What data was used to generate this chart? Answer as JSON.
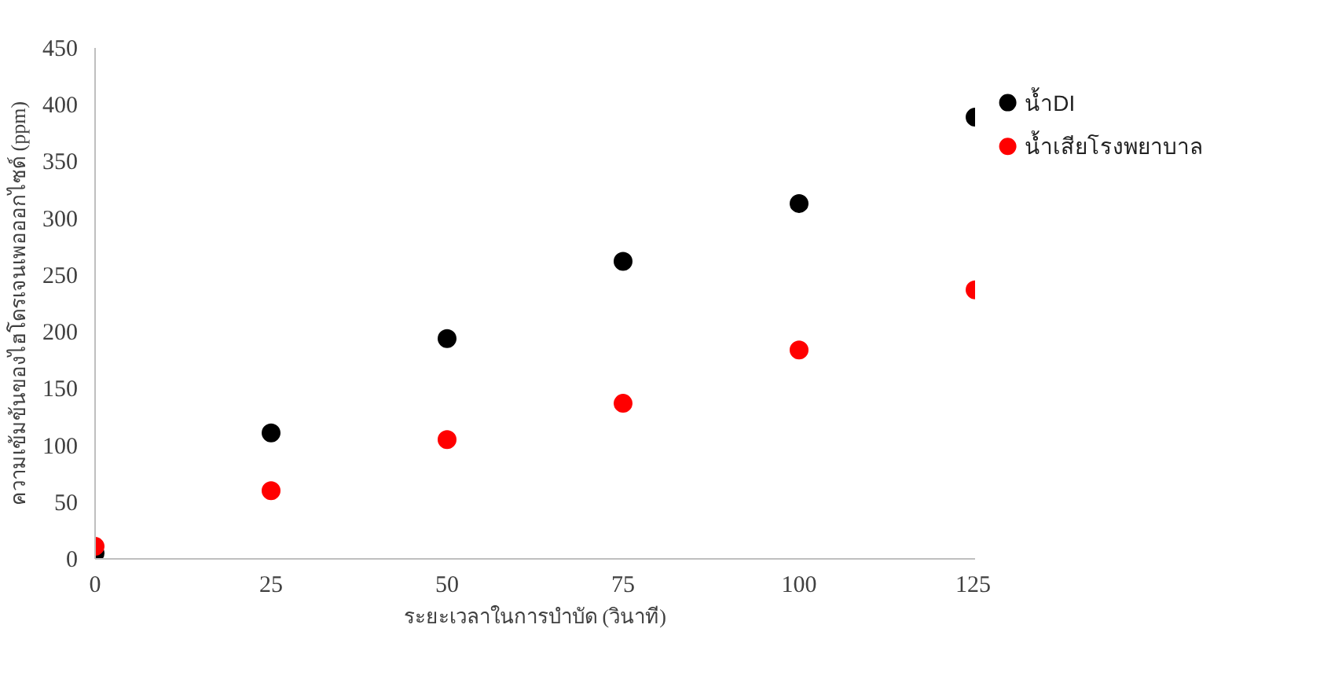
{
  "chart_data": {
    "type": "scatter",
    "xlabel": "ระยะเวลาในการบำบัด (วินาที)",
    "ylabel": "ความเข้มข้นของไฮโดรเจนเพอออกไซด์ (ppm)",
    "x": [
      0,
      25,
      50,
      75,
      100,
      125
    ],
    "series": [
      {
        "name": "น้ำDI",
        "color": "#000000",
        "values": [
          5,
          111,
          194,
          262,
          313,
          389
        ]
      },
      {
        "name": "น้ำเสียโรงพยาบาล",
        "color": "#ff0000",
        "values": [
          11,
          60,
          105,
          137,
          184,
          237
        ]
      }
    ],
    "xlim": [
      0,
      125
    ],
    "xticks": [
      0,
      25,
      50,
      75,
      100,
      125
    ],
    "ylim": [
      0,
      450
    ],
    "yticks": [
      0,
      50,
      100,
      150,
      200,
      250,
      300,
      350,
      400,
      450
    ],
    "grid": false,
    "legend": "top right",
    "marker": "circle"
  }
}
